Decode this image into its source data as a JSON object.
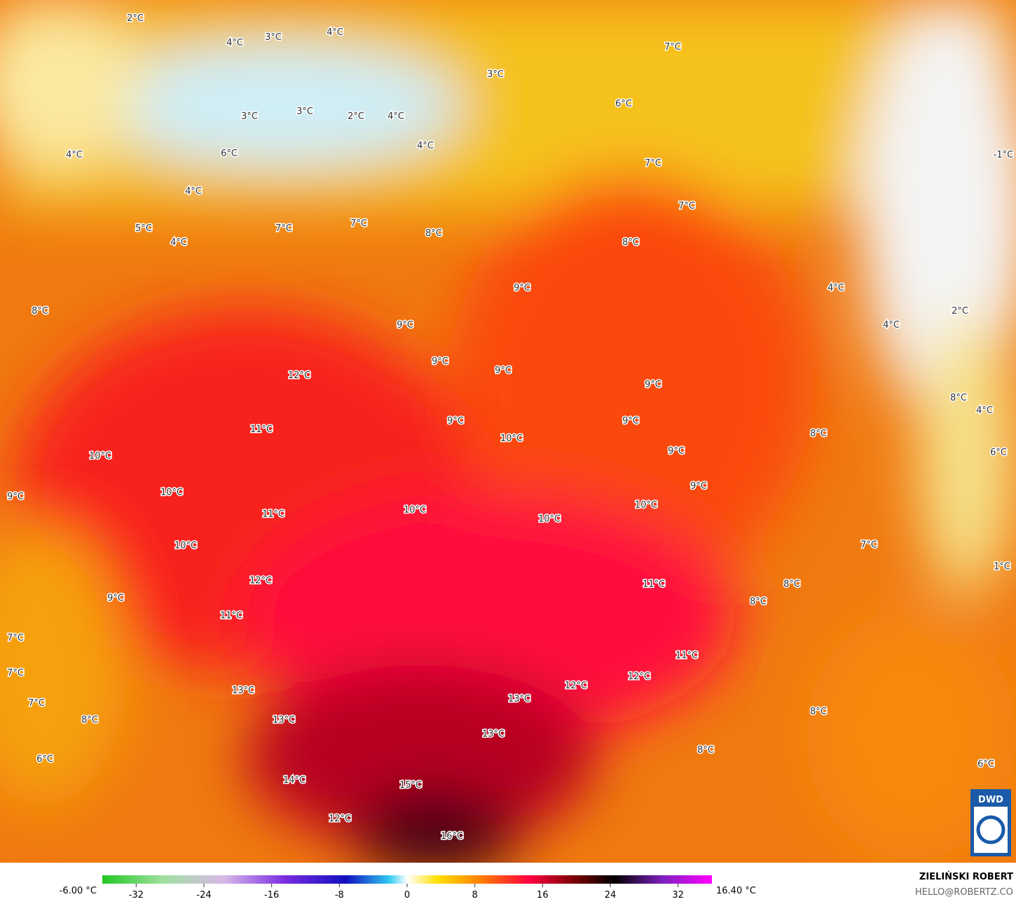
{
  "map": {
    "labels": [
      "2°C",
      "3°C",
      "4°C",
      "4°C",
      "3°C",
      "7°C",
      "6°C",
      "3°C",
      "3°C",
      "2°C",
      "4°C",
      "4°C",
      "6°C",
      "4°C",
      "4°C",
      "7°C",
      "-1°C",
      "5°C",
      "4°C",
      "7°C",
      "7°C",
      "8°C",
      "7°C",
      "8°C",
      "8°C",
      "9°C",
      "4°C",
      "2°C",
      "9°C",
      "4°C",
      "12°C",
      "9°C",
      "9°C",
      "9°C",
      "11°C",
      "8°C",
      "4°C",
      "9°C",
      "9°C",
      "8°C",
      "10°C",
      "10°C",
      "9°C",
      "6°C",
      "9°C",
      "10°C",
      "9°C",
      "10°C",
      "11°C",
      "10°C",
      "10°C",
      "10°C",
      "7°C",
      "1°C",
      "12°C",
      "11°C",
      "8°C",
      "9°C",
      "8°C",
      "11°C",
      "7°C",
      "11°C",
      "7°C",
      "12°C",
      "12°C",
      "13°C",
      "13°C",
      "7°C",
      "8°C",
      "13°C",
      "8°C",
      "13°C",
      "8°C",
      "6°C",
      "6°C",
      "14°C",
      "15°C",
      "12°C",
      "16°C"
    ]
  },
  "legend": {
    "min_label": "-6.00 °C",
    "max_label": "16.40 °C",
    "lim": [
      -36,
      36
    ],
    "ticks": [
      -32,
      -24,
      -16,
      -8,
      0,
      8,
      16,
      24,
      32
    ]
  },
  "credit": {
    "author": "ZIELIŃSKI ROBERT",
    "email": "HELLO@ROBERTZ.CO",
    "logo": "DWD"
  }
}
